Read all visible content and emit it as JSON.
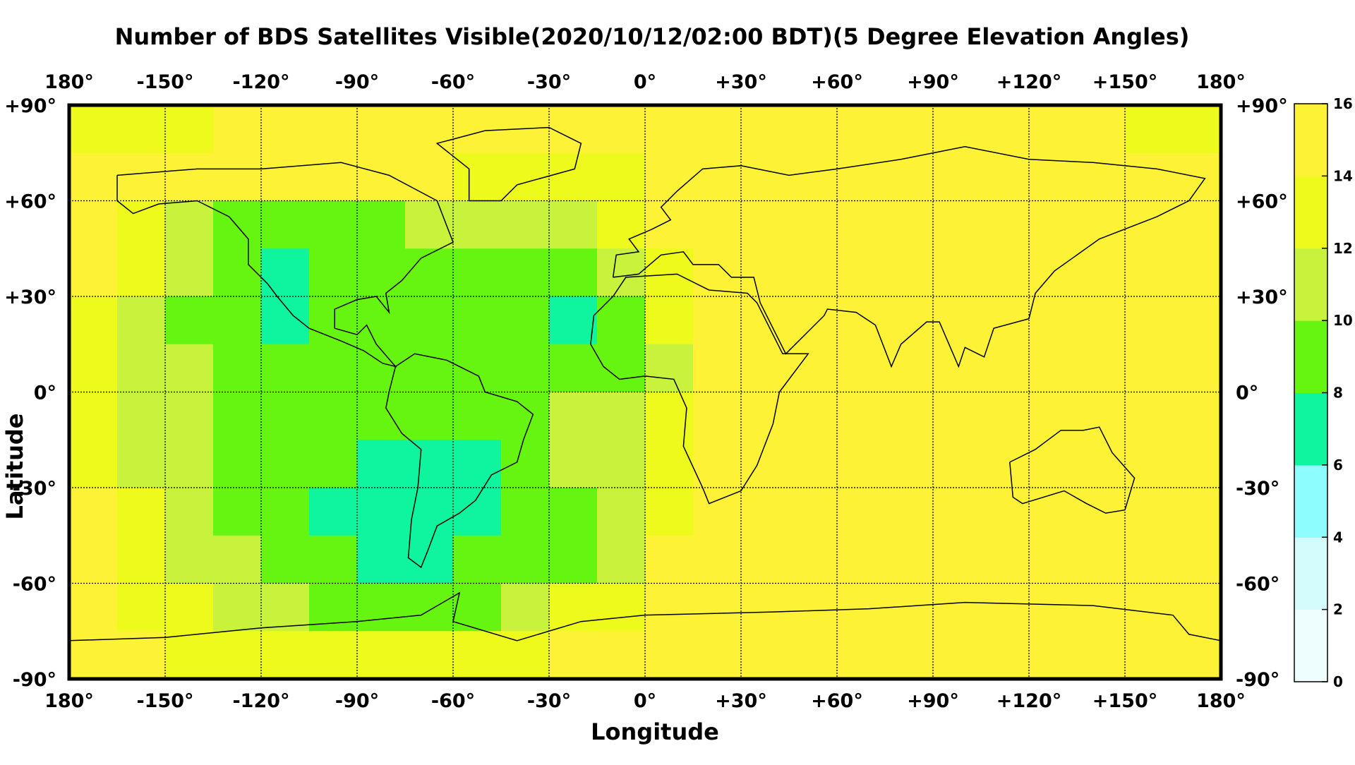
{
  "chart_data": {
    "type": "heatmap",
    "title": "Number of BDS Satellites Visible(2020/10/12/02:00 BDT)(5 Degree Elevation Angles)",
    "xlabel": "Longitude",
    "ylabel": "Latitude",
    "xlim": [
      -180,
      180
    ],
    "ylim": [
      -90,
      90
    ],
    "xticks": [
      {
        "value": -180,
        "label": "180°"
      },
      {
        "value": -150,
        "label": "-150°"
      },
      {
        "value": -120,
        "label": "-120°"
      },
      {
        "value": -90,
        "label": "-90°"
      },
      {
        "value": -60,
        "label": "-60°"
      },
      {
        "value": -30,
        "label": "-30°"
      },
      {
        "value": 0,
        "label": "0°"
      },
      {
        "value": 30,
        "label": "+30°"
      },
      {
        "value": 60,
        "label": "+60°"
      },
      {
        "value": 90,
        "label": "+90°"
      },
      {
        "value": 120,
        "label": "+120°"
      },
      {
        "value": 150,
        "label": "+150°"
      },
      {
        "value": 180,
        "label": "180°"
      }
    ],
    "yticks": [
      {
        "value": 90,
        "label": "+90°"
      },
      {
        "value": 60,
        "label": "+60°"
      },
      {
        "value": 30,
        "label": "+30°"
      },
      {
        "value": 0,
        "label": "0°"
      },
      {
        "value": -30,
        "label": "-30°"
      },
      {
        "value": -60,
        "label": "-60°"
      },
      {
        "value": -90,
        "label": "-90°"
      }
    ],
    "grid": true,
    "x": [
      -172.5,
      -157.5,
      -142.5,
      -127.5,
      -112.5,
      -97.5,
      -82.5,
      -67.5,
      -52.5,
      -37.5,
      -22.5,
      -7.5,
      7.5,
      22.5,
      37.5,
      52.5,
      67.5,
      82.5,
      97.5,
      112.5,
      127.5,
      142.5,
      157.5,
      172.5
    ],
    "y": [
      82.5,
      67.5,
      52.5,
      37.5,
      22.5,
      7.5,
      -7.5,
      -22.5,
      -37.5,
      -52.5,
      -67.5,
      -82.5
    ],
    "values": [
      [
        13,
        13,
        13,
        15,
        15,
        15,
        15,
        15,
        15,
        15,
        15,
        15,
        15,
        15,
        15,
        15,
        15,
        15,
        15,
        15,
        15,
        15,
        13,
        13
      ],
      [
        15,
        15,
        15,
        15,
        15,
        15,
        15,
        15,
        13,
        13,
        13,
        13,
        15,
        15,
        15,
        15,
        15,
        15,
        15,
        15,
        15,
        15,
        15,
        15
      ],
      [
        15,
        13,
        11,
        9,
        9,
        9,
        9,
        11,
        11,
        11,
        11,
        13,
        15,
        15,
        15,
        15,
        15,
        15,
        15,
        15,
        15,
        15,
        15,
        15
      ],
      [
        15,
        13,
        11,
        9,
        7,
        9,
        9,
        9,
        9,
        9,
        9,
        11,
        13,
        15,
        15,
        15,
        15,
        15,
        15,
        15,
        15,
        15,
        15,
        15
      ],
      [
        13,
        11,
        9,
        9,
        7,
        9,
        9,
        9,
        9,
        9,
        7,
        9,
        13,
        15,
        15,
        15,
        15,
        15,
        15,
        15,
        15,
        15,
        15,
        15
      ],
      [
        13,
        11,
        11,
        9,
        9,
        9,
        9,
        9,
        9,
        9,
        9,
        9,
        11,
        15,
        15,
        15,
        15,
        15,
        15,
        15,
        15,
        15,
        15,
        15
      ],
      [
        13,
        11,
        11,
        9,
        9,
        9,
        9,
        9,
        9,
        9,
        11,
        11,
        13,
        15,
        15,
        15,
        15,
        15,
        15,
        15,
        15,
        15,
        15,
        15
      ],
      [
        13,
        11,
        11,
        9,
        9,
        9,
        7,
        7,
        7,
        9,
        11,
        11,
        13,
        15,
        15,
        15,
        15,
        15,
        15,
        15,
        15,
        15,
        15,
        15
      ],
      [
        15,
        13,
        11,
        9,
        9,
        7,
        7,
        7,
        7,
        9,
        9,
        11,
        13,
        15,
        15,
        15,
        15,
        15,
        15,
        15,
        15,
        15,
        15,
        15
      ],
      [
        15,
        13,
        11,
        11,
        9,
        9,
        7,
        7,
        9,
        9,
        9,
        11,
        15,
        15,
        15,
        15,
        15,
        15,
        15,
        15,
        15,
        15,
        15,
        15
      ],
      [
        15,
        13,
        13,
        11,
        11,
        9,
        9,
        9,
        9,
        11,
        13,
        13,
        15,
        15,
        15,
        15,
        15,
        15,
        15,
        15,
        15,
        15,
        15,
        15
      ],
      [
        15,
        15,
        13,
        13,
        13,
        13,
        13,
        13,
        13,
        13,
        15,
        15,
        15,
        15,
        15,
        15,
        15,
        15,
        15,
        15,
        15,
        15,
        15,
        15
      ]
    ],
    "colorbar": {
      "lim": [
        0,
        16
      ],
      "ticks": [
        0,
        2,
        4,
        6,
        8,
        10,
        12,
        14,
        16
      ],
      "colors": [
        "#eefefe",
        "#d4fcfc",
        "#8dfdfd",
        "#0ff59d",
        "#66f510",
        "#c9f23c",
        "#eef91c",
        "#fdf236"
      ]
    }
  }
}
